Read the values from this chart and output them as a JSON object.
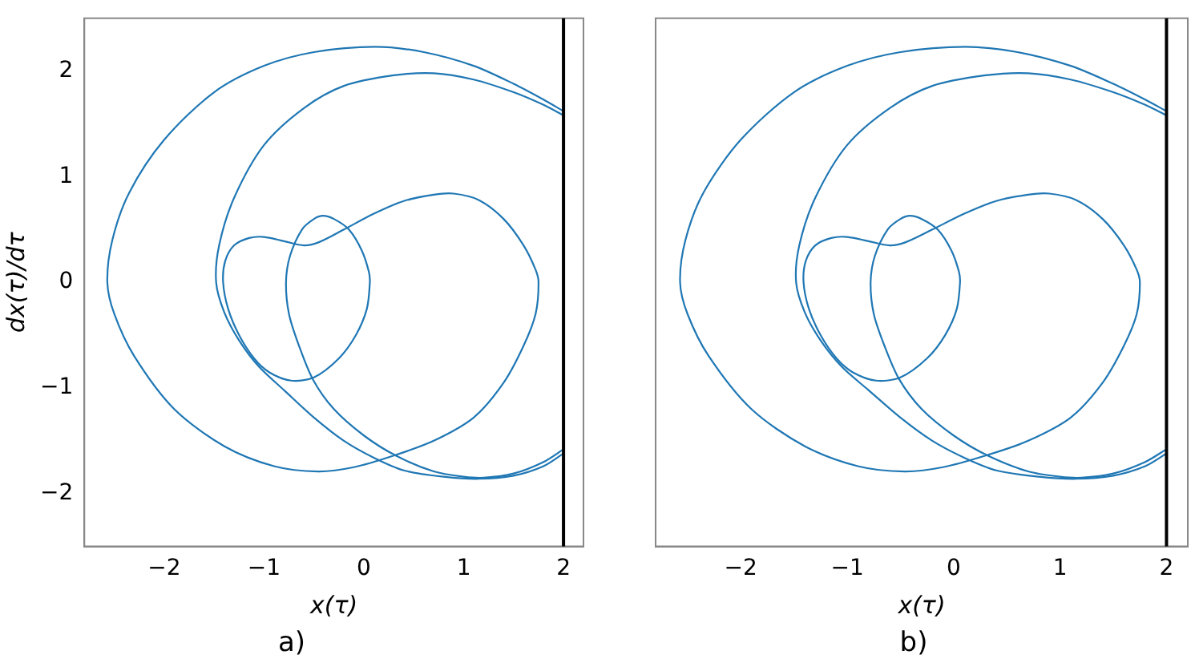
{
  "chart_data": [
    {
      "type": "line",
      "xlabel": "x(τ)",
      "ylabel": "dx(τ)/dτ",
      "annotations": [
        "a)"
      ],
      "marker": "none",
      "xlim": [
        -2.8,
        2.2
      ],
      "ylim": [
        -2.5,
        2.5
      ],
      "xticks": [
        -2,
        -1,
        0,
        1,
        2
      ],
      "yticks": [
        -2,
        -1,
        0,
        1,
        2
      ],
      "ref_lines": [
        {
          "axis": "x",
          "value": 2,
          "color": "#000000"
        }
      ],
      "series": [
        {
          "color": "#1f77b4",
          "x": [
            2,
            1.8,
            1.5,
            1.2,
            1.0,
            0.7,
            0.32,
            0,
            -0.3,
            -0.51,
            -0.65,
            -0.75,
            -0.78,
            -0.74,
            -0.62,
            -0.5,
            -0.41,
            -0.3,
            -0.15,
            -0.02,
            0.05,
            0.06,
            0.03,
            -0.08,
            -0.25,
            -0.5,
            -0.73,
            -0.95,
            -1.1,
            -1.25,
            -1.36,
            -1.41,
            -1.39,
            -1.3,
            -1.15,
            -1.0,
            -0.8,
            -0.6,
            -0.45,
            -0.2,
            0.1,
            0.4,
            0.7,
            0.9,
            1.15,
            1.4,
            1.6,
            1.72,
            1.75,
            1.72,
            1.6,
            1.4,
            1.1,
            0.7,
            0.3,
            -0.1,
            -0.46,
            -0.9,
            -1.4,
            -1.9,
            -2.3,
            -2.5,
            -2.57,
            -2.52,
            -2.35,
            -2.0,
            -1.5,
            -1.0,
            -0.5,
            0.11,
            0.6,
            1.1,
            1.5,
            1.8,
            2
          ],
          "values": [
            -1.58,
            -1.7,
            -1.81,
            -1.85,
            -1.84,
            -1.79,
            -1.64,
            -1.45,
            -1.2,
            -0.92,
            -0.6,
            -0.3,
            0,
            0.25,
            0.5,
            0.6,
            0.63,
            0.6,
            0.5,
            0.3,
            0.1,
            0,
            -0.25,
            -0.5,
            -0.72,
            -0.9,
            -0.93,
            -0.85,
            -0.72,
            -0.5,
            -0.25,
            0,
            0.2,
            0.35,
            0.42,
            0.43,
            0.39,
            0.35,
            0.38,
            0.5,
            0.65,
            0.77,
            0.83,
            0.84,
            0.78,
            0.6,
            0.35,
            0.12,
            0,
            -0.3,
            -0.6,
            -0.95,
            -1.28,
            -1.5,
            -1.64,
            -1.75,
            -1.79,
            -1.74,
            -1.55,
            -1.2,
            -0.7,
            -0.3,
            0,
            0.4,
            0.85,
            1.35,
            1.8,
            2.05,
            2.18,
            2.23,
            2.18,
            2.05,
            1.88,
            1.73,
            1.62
          ]
        },
        {
          "color": "#1f77b4",
          "x": [
            2,
            1.8,
            1.5,
            1.15,
            0.8,
            0.4,
            0.1,
            -0.2,
            -0.5,
            -0.8,
            -1.05,
            -1.25,
            -1.4,
            -1.48,
            -1.45,
            -1.3,
            -1.0,
            -0.6,
            -0.2,
            0.3,
            0.7,
            1.1,
            1.5,
            1.8,
            2
          ],
          "values": [
            -1.62,
            -1.74,
            -1.83,
            -1.86,
            -1.84,
            -1.78,
            -1.66,
            -1.5,
            -1.28,
            -1.02,
            -0.8,
            -0.55,
            -0.28,
            0,
            0.35,
            0.8,
            1.3,
            1.65,
            1.86,
            1.96,
            1.98,
            1.92,
            1.8,
            1.68,
            1.58
          ]
        }
      ]
    },
    {
      "type": "line",
      "xlabel": "x(τ)",
      "annotations": [
        "b)"
      ],
      "marker": "none",
      "tick_labels": "x",
      "xlim": [
        -2.8,
        2.2
      ],
      "ylim": [
        -2.5,
        2.5
      ],
      "xticks": [
        -2,
        -1,
        0,
        1,
        2
      ],
      "yticks": [
        -2,
        -1,
        0,
        1,
        2
      ],
      "ref_lines": [
        {
          "axis": "x",
          "value": 2,
          "color": "#000000"
        }
      ],
      "series": [
        {
          "color": "#1f77b4",
          "x": [
            2,
            1.8,
            1.5,
            1.2,
            1.0,
            0.7,
            0.32,
            0,
            -0.3,
            -0.51,
            -0.65,
            -0.75,
            -0.78,
            -0.74,
            -0.62,
            -0.5,
            -0.41,
            -0.3,
            -0.15,
            -0.02,
            0.05,
            0.06,
            0.03,
            -0.08,
            -0.25,
            -0.5,
            -0.73,
            -0.95,
            -1.1,
            -1.25,
            -1.36,
            -1.41,
            -1.39,
            -1.3,
            -1.15,
            -1.0,
            -0.8,
            -0.6,
            -0.45,
            -0.2,
            0.1,
            0.4,
            0.7,
            0.9,
            1.15,
            1.4,
            1.6,
            1.72,
            1.75,
            1.72,
            1.6,
            1.4,
            1.1,
            0.7,
            0.3,
            -0.1,
            -0.46,
            -0.9,
            -1.4,
            -1.9,
            -2.3,
            -2.5,
            -2.57,
            -2.52,
            -2.35,
            -2.0,
            -1.5,
            -1.0,
            -0.5,
            0.11,
            0.6,
            1.1,
            1.5,
            1.8,
            2
          ],
          "values": [
            -1.58,
            -1.7,
            -1.81,
            -1.85,
            -1.84,
            -1.79,
            -1.64,
            -1.45,
            -1.2,
            -0.92,
            -0.6,
            -0.3,
            0,
            0.25,
            0.5,
            0.6,
            0.63,
            0.6,
            0.5,
            0.3,
            0.1,
            0,
            -0.25,
            -0.5,
            -0.72,
            -0.9,
            -0.93,
            -0.85,
            -0.72,
            -0.5,
            -0.25,
            0,
            0.2,
            0.35,
            0.42,
            0.43,
            0.39,
            0.35,
            0.38,
            0.5,
            0.65,
            0.77,
            0.83,
            0.84,
            0.78,
            0.6,
            0.35,
            0.12,
            0,
            -0.3,
            -0.6,
            -0.95,
            -1.28,
            -1.5,
            -1.64,
            -1.75,
            -1.79,
            -1.74,
            -1.55,
            -1.2,
            -0.7,
            -0.3,
            0,
            0.4,
            0.85,
            1.35,
            1.8,
            2.05,
            2.18,
            2.23,
            2.18,
            2.05,
            1.88,
            1.73,
            1.62
          ]
        },
        {
          "color": "#1f77b4",
          "x": [
            2,
            1.8,
            1.5,
            1.15,
            0.8,
            0.4,
            0.1,
            -0.2,
            -0.5,
            -0.8,
            -1.05,
            -1.25,
            -1.4,
            -1.48,
            -1.45,
            -1.3,
            -1.0,
            -0.6,
            -0.2,
            0.3,
            0.7,
            1.1,
            1.5,
            1.8,
            2
          ],
          "values": [
            -1.62,
            -1.74,
            -1.83,
            -1.86,
            -1.84,
            -1.78,
            -1.66,
            -1.5,
            -1.28,
            -1.02,
            -0.8,
            -0.55,
            -0.28,
            0,
            0.35,
            0.8,
            1.3,
            1.65,
            1.86,
            1.96,
            1.98,
            1.92,
            1.8,
            1.68,
            1.58
          ]
        }
      ]
    }
  ]
}
